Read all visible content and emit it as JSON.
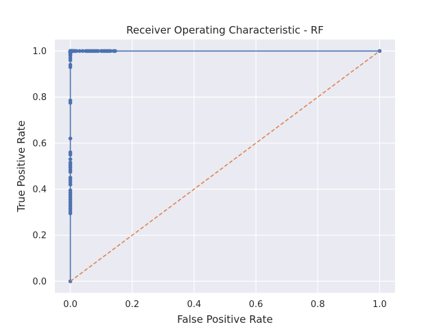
{
  "chart_data": {
    "type": "line",
    "title": "Receiver Operating Characteristic - RF",
    "xlabel": "False Positive Rate",
    "ylabel": "True Positive Rate",
    "xlim": [
      -0.05,
      1.05
    ],
    "ylim": [
      -0.05,
      1.05
    ],
    "grid": true,
    "xticks": [
      0.0,
      0.2,
      0.4,
      0.6,
      0.8,
      1.0
    ],
    "yticks": [
      0.0,
      0.2,
      0.4,
      0.6,
      0.8,
      1.0
    ],
    "xtick_labels": [
      "0.0",
      "0.2",
      "0.4",
      "0.6",
      "0.8",
      "1.0"
    ],
    "ytick_labels": [
      "0.0",
      "0.2",
      "0.4",
      "0.6",
      "0.8",
      "1.0"
    ],
    "series": [
      {
        "color": "#4c72b0",
        "style": "solid",
        "marker": "circle",
        "x": [
          0.0,
          0.0,
          0.0,
          0.0,
          0.0,
          0.0,
          0.0,
          0.0,
          0.0,
          0.0,
          0.0,
          0.0,
          0.0,
          0.0,
          0.0,
          0.0,
          0.0,
          0.0,
          0.0,
          0.0,
          0.0,
          0.0,
          0.0,
          0.0,
          0.0,
          0.0,
          0.0,
          0.0,
          0.0,
          0.0,
          0.0,
          0.0,
          0.0,
          0.0,
          0.0,
          0.0,
          0.0,
          0.0,
          0.0,
          0.0,
          0.0,
          0.0,
          0.0,
          0.0,
          0.0,
          0.001,
          0.002,
          0.003,
          0.004,
          0.005,
          0.006,
          0.008,
          0.01,
          0.012,
          0.015,
          0.02,
          0.03,
          0.04,
          0.05,
          0.055,
          0.06,
          0.065,
          0.07,
          0.075,
          0.08,
          0.085,
          0.09,
          0.1,
          0.105,
          0.11,
          0.115,
          0.12,
          0.125,
          0.13,
          0.14,
          0.145,
          1.0
        ],
        "y": [
          0.0,
          0.295,
          0.305,
          0.315,
          0.325,
          0.335,
          0.345,
          0.355,
          0.365,
          0.375,
          0.385,
          0.395,
          0.42,
          0.43,
          0.44,
          0.45,
          0.475,
          0.485,
          0.495,
          0.505,
          0.515,
          0.53,
          0.55,
          0.56,
          0.62,
          0.775,
          0.785,
          0.93,
          0.94,
          0.96,
          0.97,
          0.98,
          0.985,
          0.99,
          0.993,
          0.995,
          0.996,
          0.997,
          0.998,
          0.999,
          0.999,
          1.0,
          1.0,
          1.0,
          1.0,
          1.0,
          1.0,
          1.0,
          1.0,
          1.0,
          1.0,
          1.0,
          1.0,
          1.0,
          1.0,
          1.0,
          1.0,
          1.0,
          1.0,
          1.0,
          1.0,
          1.0,
          1.0,
          1.0,
          1.0,
          1.0,
          1.0,
          1.0,
          1.0,
          1.0,
          1.0,
          1.0,
          1.0,
          1.0,
          1.0,
          1.0,
          1.0
        ]
      },
      {
        "color": "#dd8452",
        "style": "dashed",
        "marker": "none",
        "x": [
          0.0,
          1.0
        ],
        "y": [
          0.0,
          1.0
        ]
      }
    ]
  }
}
